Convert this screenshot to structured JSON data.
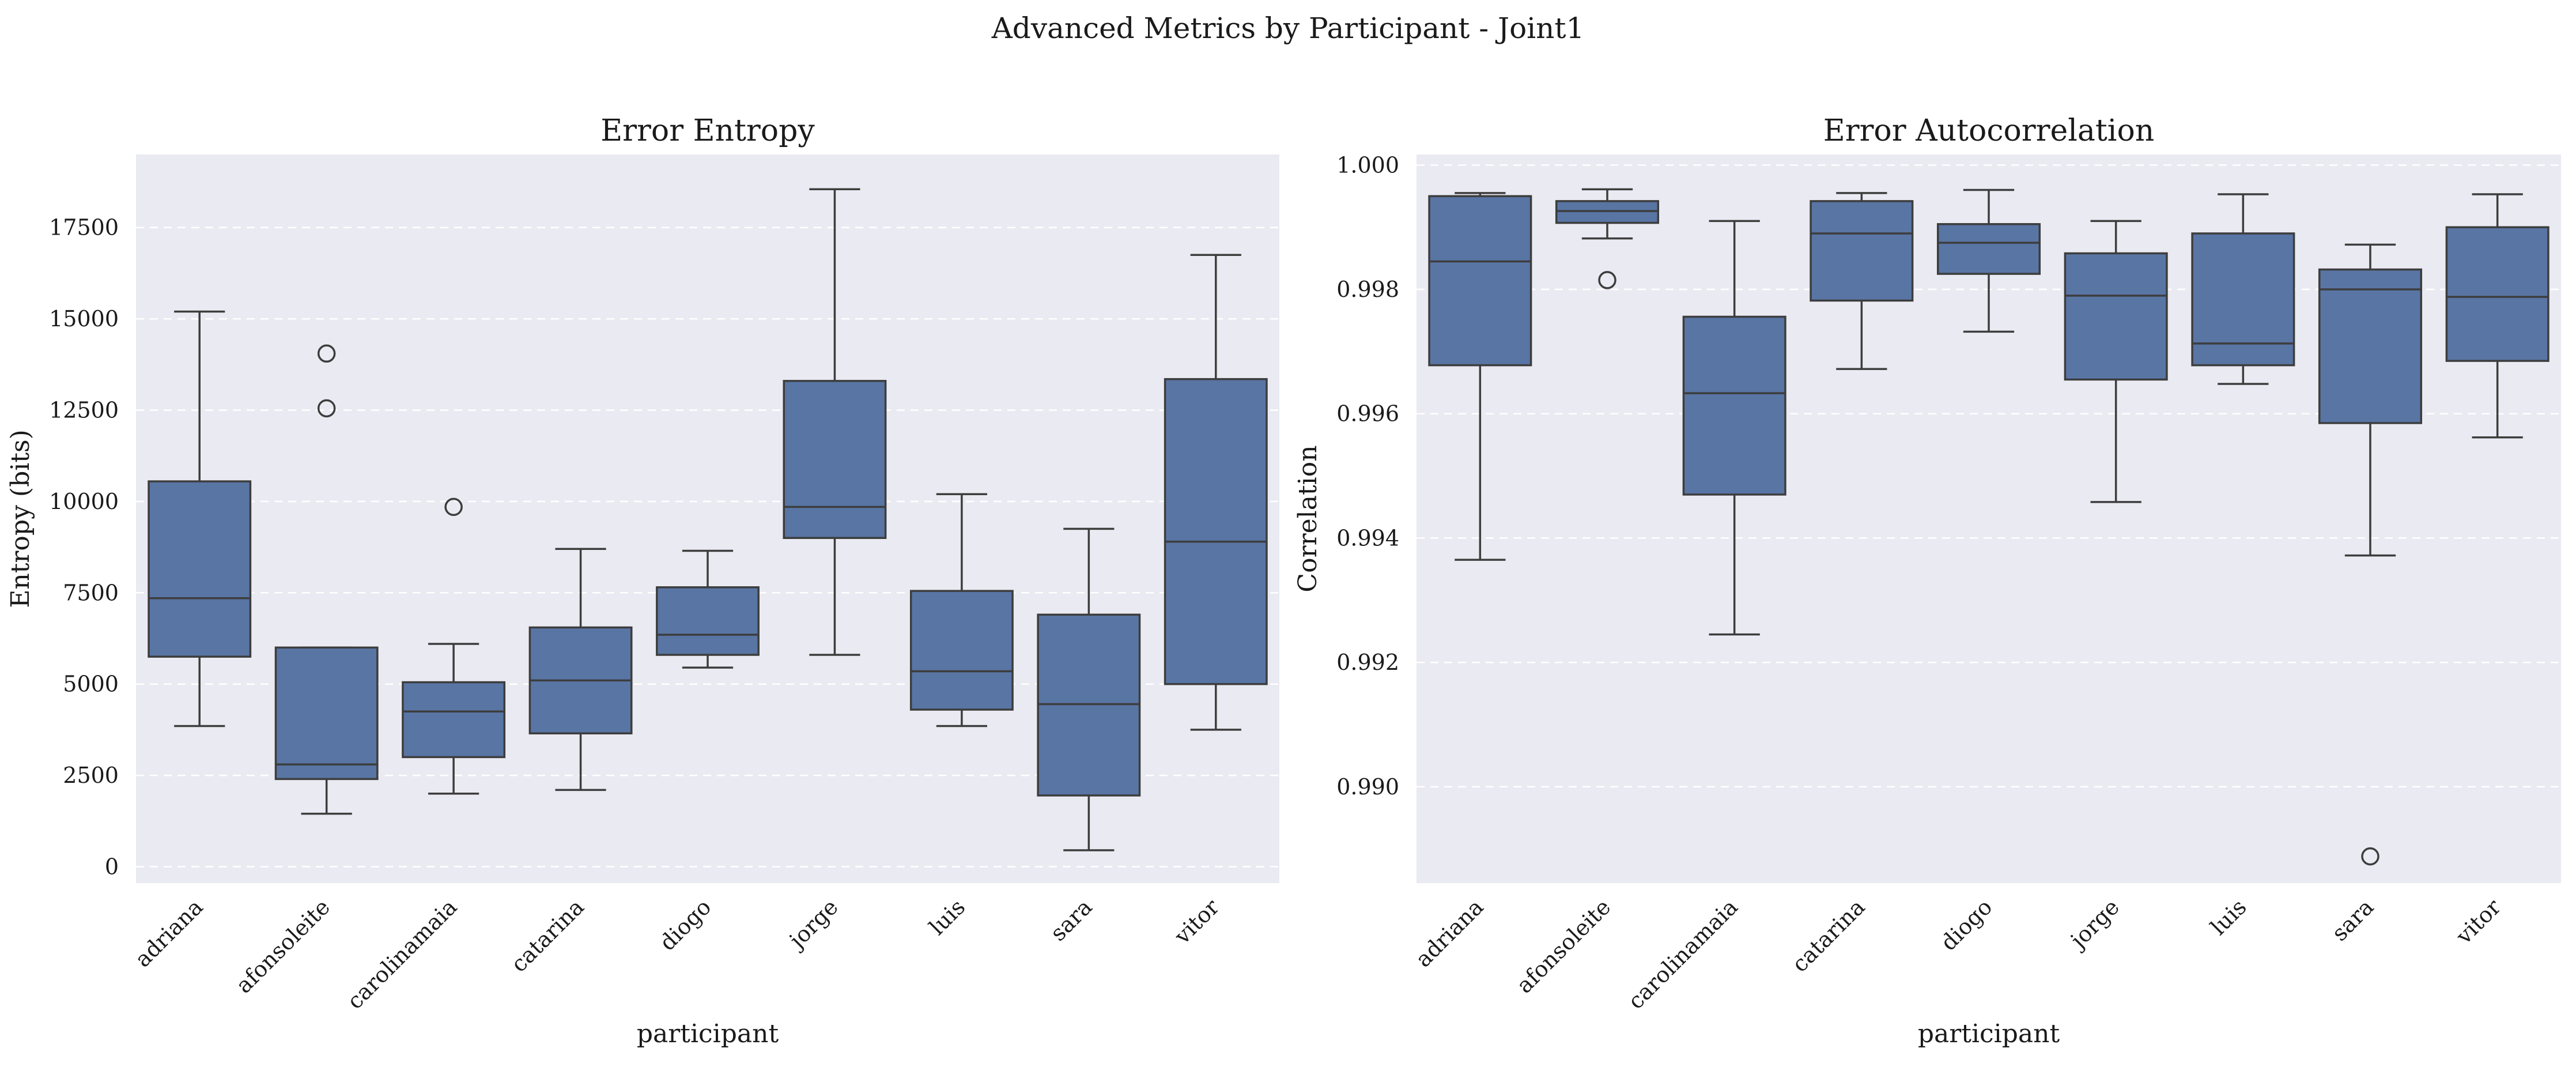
{
  "figure": {
    "suptitle": "Advanced Metrics by Participant - Joint1"
  },
  "colors": {
    "box_fill": "#5875a4",
    "line": "#3d3d3d",
    "plot_bg": "#eaeaf2",
    "grid": "#ffffff"
  },
  "chart_data": [
    {
      "type": "box",
      "title": "Error Entropy",
      "xlabel": "participant",
      "ylabel": "Entropy (bits)",
      "ylim": [
        -450,
        19500
      ],
      "yticks": [
        0,
        2500,
        5000,
        7500,
        10000,
        12500,
        15000,
        17500
      ],
      "grid": true,
      "categories": [
        "adriana",
        "afonsoleite",
        "carolinamaia",
        "catarina",
        "diogo",
        "jorge",
        "luis",
        "sara",
        "vitor"
      ],
      "boxes": [
        {
          "whislo": 3850,
          "q1": 5750,
          "med": 7350,
          "q3": 10550,
          "whishi": 15200,
          "fliers": []
        },
        {
          "whislo": 1450,
          "q1": 2400,
          "med": 2800,
          "q3": 6000,
          "whishi": 6000,
          "fliers": [
            14050,
            12550
          ]
        },
        {
          "whislo": 2000,
          "q1": 3000,
          "med": 4250,
          "q3": 5050,
          "whishi": 6100,
          "fliers": [
            9850
          ]
        },
        {
          "whislo": 2100,
          "q1": 3650,
          "med": 5100,
          "q3": 6550,
          "whishi": 8700,
          "fliers": []
        },
        {
          "whislo": 5450,
          "q1": 5800,
          "med": 6350,
          "q3": 7650,
          "whishi": 8650,
          "fliers": []
        },
        {
          "whislo": 5800,
          "q1": 9000,
          "med": 9850,
          "q3": 13300,
          "whishi": 18550,
          "fliers": []
        },
        {
          "whislo": 3850,
          "q1": 4300,
          "med": 5350,
          "q3": 7550,
          "whishi": 10200,
          "fliers": []
        },
        {
          "whislo": 450,
          "q1": 1950,
          "med": 4450,
          "q3": 6900,
          "whishi": 9250,
          "fliers": []
        },
        {
          "whislo": 3750,
          "q1": 5000,
          "med": 8900,
          "q3": 13350,
          "whishi": 16750,
          "fliers": []
        }
      ]
    },
    {
      "type": "box",
      "title": "Error Autocorrelation",
      "xlabel": "participant",
      "ylabel": "Correlation",
      "ylim": [
        0.98845,
        1.00017
      ],
      "yticks": [
        0.99,
        0.992,
        0.994,
        0.996,
        0.998,
        1.0
      ],
      "ytick_labels": [
        "0.990",
        "0.992",
        "0.994",
        "0.996",
        "0.998",
        "1.000"
      ],
      "grid": true,
      "categories": [
        "adriana",
        "afonsoleite",
        "carolinamaia",
        "catarina",
        "diogo",
        "jorge",
        "luis",
        "sara",
        "vitor"
      ],
      "boxes": [
        {
          "whislo": 0.99365,
          "q1": 0.99678,
          "med": 0.99845,
          "q3": 0.9995,
          "whishi": 0.99955,
          "fliers": []
        },
        {
          "whislo": 0.99882,
          "q1": 0.99907,
          "med": 0.99926,
          "q3": 0.99942,
          "whishi": 0.99961,
          "fliers": [
            0.99815
          ]
        },
        {
          "whislo": 0.99245,
          "q1": 0.9947,
          "med": 0.99633,
          "q3": 0.99756,
          "whishi": 0.9991,
          "fliers": []
        },
        {
          "whislo": 0.99672,
          "q1": 0.99782,
          "med": 0.9989,
          "q3": 0.99942,
          "whishi": 0.99955,
          "fliers": []
        },
        {
          "whislo": 0.99732,
          "q1": 0.99825,
          "med": 0.99875,
          "q3": 0.99905,
          "whishi": 0.9996,
          "fliers": []
        },
        {
          "whislo": 0.99458,
          "q1": 0.99655,
          "med": 0.9979,
          "q3": 0.99858,
          "whishi": 0.9991,
          "fliers": []
        },
        {
          "whislo": 0.99648,
          "q1": 0.99678,
          "med": 0.99713,
          "q3": 0.9989,
          "whishi": 0.99953,
          "fliers": []
        },
        {
          "whislo": 0.99372,
          "q1": 0.99585,
          "med": 0.998,
          "q3": 0.99832,
          "whishi": 0.99872,
          "fliers": [
            0.98888
          ]
        },
        {
          "whislo": 0.99562,
          "q1": 0.99685,
          "med": 0.99788,
          "q3": 0.999,
          "whishi": 0.99953,
          "fliers": []
        }
      ]
    }
  ]
}
